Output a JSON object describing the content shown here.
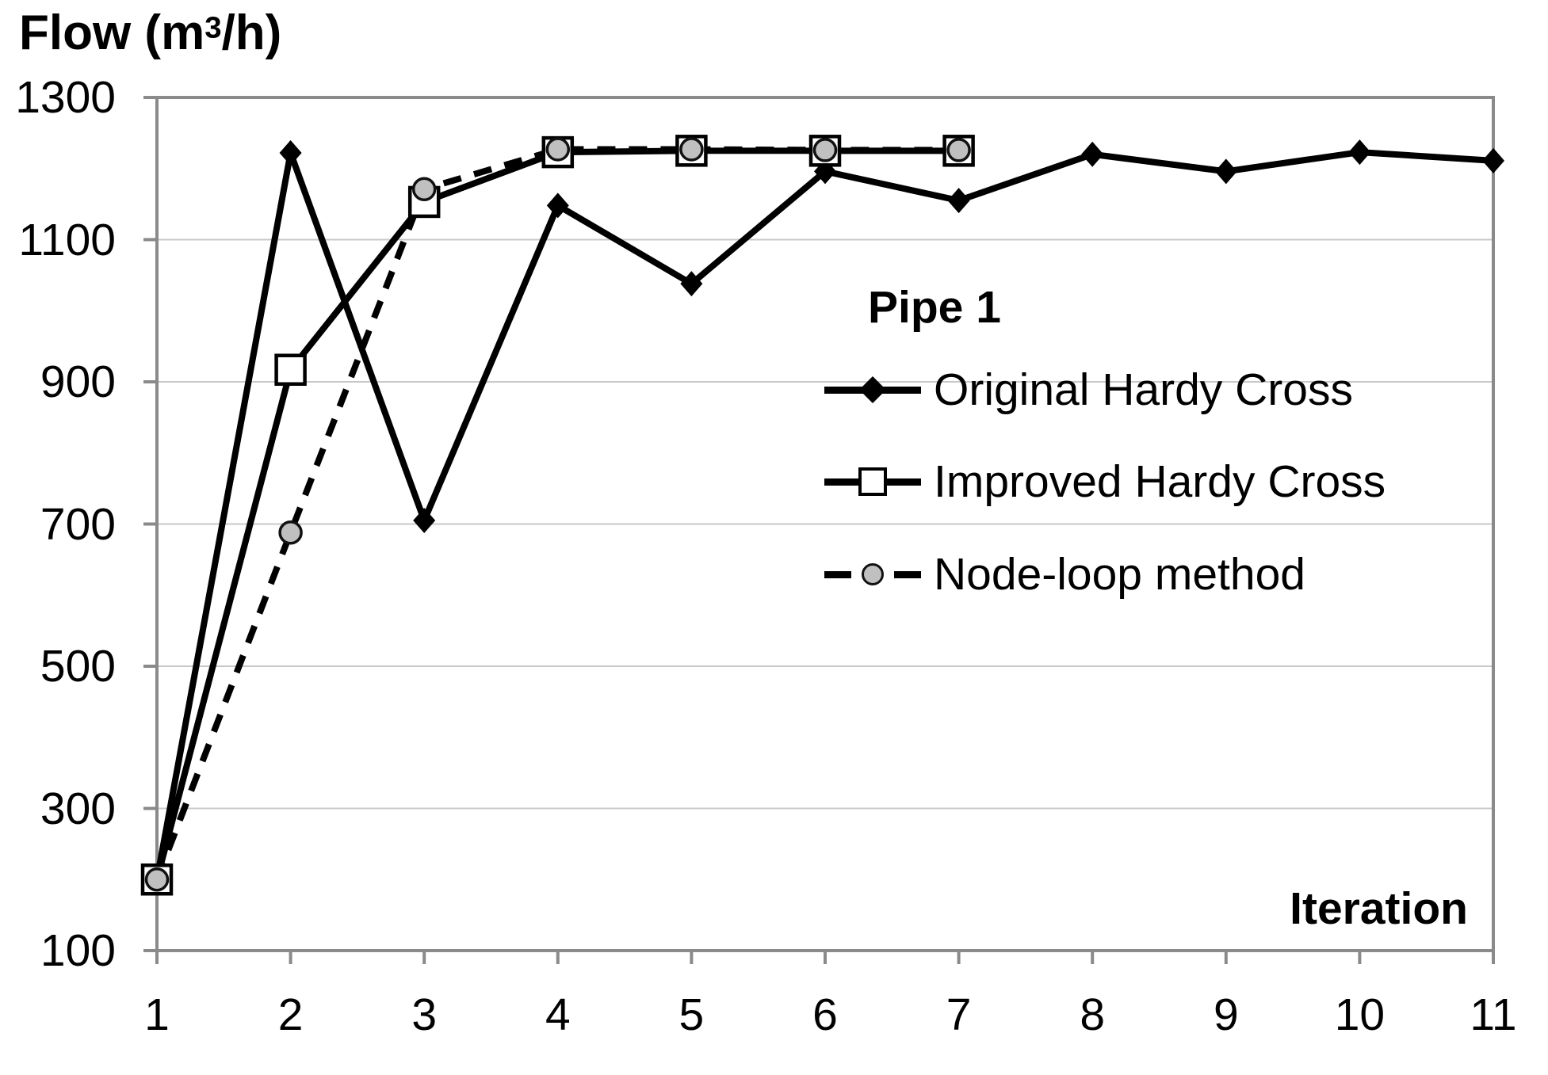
{
  "header": {
    "title_prefix": "Flow (m",
    "title_sup": "3",
    "title_suffix": "/h)"
  },
  "chart_data": {
    "type": "line",
    "title": "Pipe 1",
    "ylabel": "Flow (m³/h)",
    "xlabel": "Iteration",
    "xlim": [
      1,
      11
    ],
    "ylim": [
      100,
      1300
    ],
    "x_ticks": [
      1,
      2,
      3,
      4,
      5,
      6,
      7,
      8,
      9,
      10,
      11
    ],
    "y_ticks": [
      1300,
      1100,
      900,
      700,
      500,
      300,
      100
    ],
    "gridlines_horizontal": [
      1100,
      900,
      700,
      500,
      300
    ],
    "legend_position": "inside-right",
    "series": [
      {
        "name": "Original Hardy Cross",
        "line": "solid",
        "marker": "black-diamond",
        "x": [
          1,
          2,
          3,
          4,
          5,
          6,
          7,
          8,
          9,
          10,
          11
        ],
        "values": [
          200,
          1222,
          705,
          1148,
          1038,
          1196,
          1155,
          1220,
          1196,
          1223,
          1211
        ]
      },
      {
        "name": "Improved Hardy Cross",
        "line": "solid",
        "marker": "white-square",
        "x": [
          1,
          2,
          3,
          4,
          5,
          6,
          7
        ],
        "values": [
          200,
          917,
          1153,
          1223,
          1225,
          1225,
          1225
        ]
      },
      {
        "name": "Node-loop method",
        "line": "dashed",
        "marker": "gray-circle",
        "x": [
          1,
          2,
          3,
          4,
          5,
          6,
          7
        ],
        "values": [
          200,
          688,
          1171,
          1227,
          1227,
          1226,
          1226
        ]
      }
    ],
    "colors": {
      "series_line": "#000000",
      "circle_marker_fill": "#c0c0c0",
      "square_marker_fill": "#ffffff",
      "grid": "#c8c8c8",
      "axis": "#8a8a8a",
      "background": "#ffffff",
      "text": "#000000"
    }
  }
}
